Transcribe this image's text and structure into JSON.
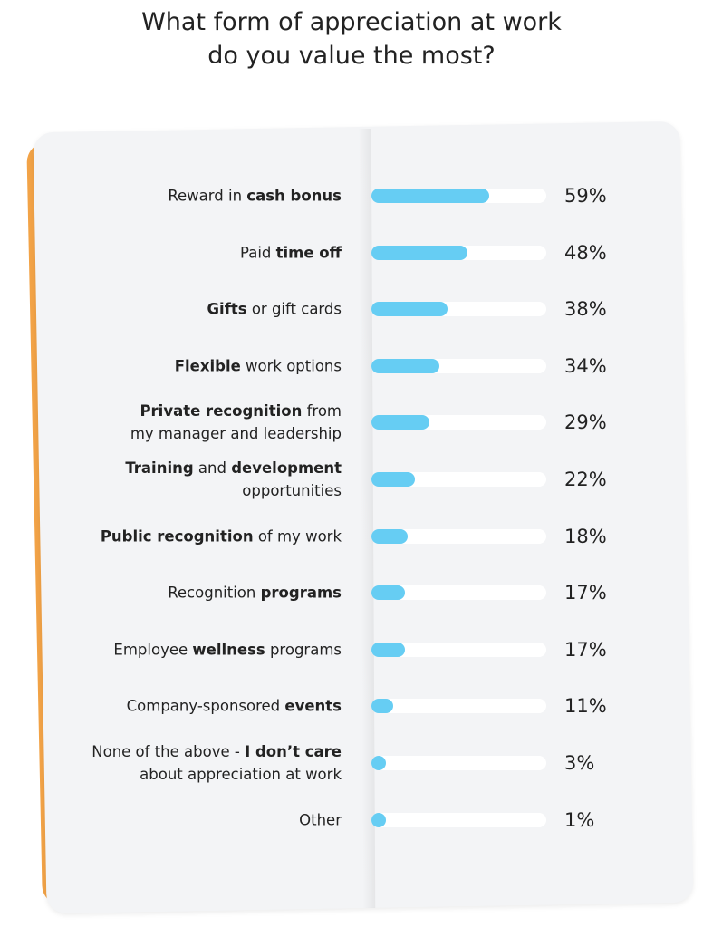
{
  "chart_data": {
    "type": "bar",
    "orientation": "horizontal",
    "title": "What form of appreciation at work do you value the most?",
    "title_lines": [
      "What form of appreciation at work",
      "do you value the most?"
    ],
    "categories": [
      "Reward in cash bonus",
      "Paid time off",
      "Gifts or gift cards",
      "Flexible work options",
      "Private recognition from my manager and leadership",
      "Training and development opportunities",
      "Public recognition of my work",
      "Recognition programs",
      "Employee wellness programs",
      "Company-sponsored events",
      "None of the above - I don’t care about appreciation at work",
      "Other"
    ],
    "label_parts": [
      [
        [
          [
            "Reward in ",
            0
          ],
          [
            "cash bonus",
            1
          ]
        ]
      ],
      [
        [
          [
            "Paid ",
            0
          ],
          [
            "time off",
            1
          ]
        ]
      ],
      [
        [
          [
            "Gifts",
            1
          ],
          [
            " or gift cards",
            0
          ]
        ]
      ],
      [
        [
          [
            "Flexible",
            1
          ],
          [
            " work options",
            0
          ]
        ]
      ],
      [
        [
          [
            "Private recognition",
            1
          ],
          [
            " from",
            0
          ]
        ],
        [
          [
            "my manager and leadership",
            0
          ]
        ]
      ],
      [
        [
          [
            "Training",
            1
          ],
          [
            " and ",
            0
          ],
          [
            "development",
            1
          ]
        ],
        [
          [
            "opportunities",
            0
          ]
        ]
      ],
      [
        [
          [
            "Public recognition",
            1
          ],
          [
            " of my work",
            0
          ]
        ]
      ],
      [
        [
          [
            "Recognition ",
            0
          ],
          [
            "programs",
            1
          ]
        ]
      ],
      [
        [
          [
            "Employee ",
            0
          ],
          [
            "wellness",
            1
          ],
          [
            " programs",
            0
          ]
        ]
      ],
      [
        [
          [
            "Company-sponsored ",
            0
          ],
          [
            "events",
            1
          ]
        ]
      ],
      [
        [
          [
            "None of the above - ",
            0
          ],
          [
            "I don’t care",
            1
          ]
        ],
        [
          [
            "about appreciation at work",
            0
          ]
        ]
      ],
      [
        [
          [
            "Other",
            0
          ]
        ]
      ]
    ],
    "values": [
      59,
      48,
      38,
      34,
      29,
      22,
      18,
      17,
      17,
      11,
      3,
      1
    ],
    "value_labels": [
      "59%",
      "48%",
      "38%",
      "34%",
      "29%",
      "22%",
      "18%",
      "17%",
      "17%",
      "11%",
      "3%",
      "1%"
    ],
    "unit": "%",
    "colors": {
      "bar": "#66cdf3",
      "track": "#ffffff",
      "card": "#f3f4f6",
      "accent": "#e8813c"
    }
  }
}
